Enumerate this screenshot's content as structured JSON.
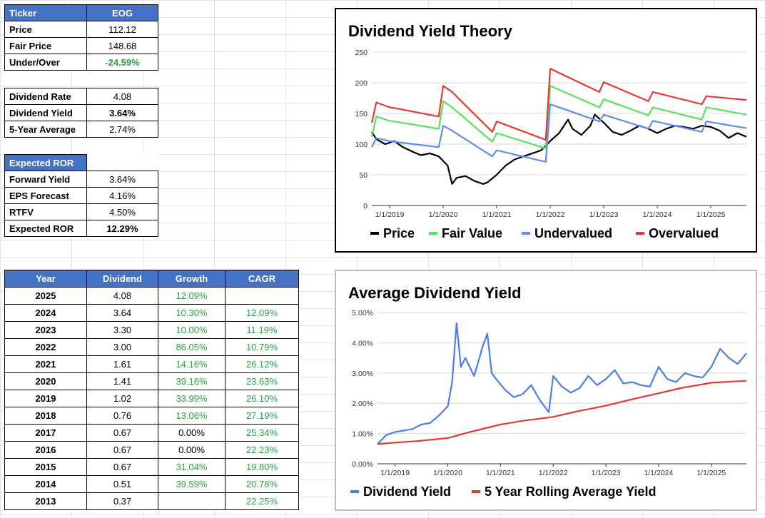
{
  "summary": {
    "header": {
      "label": "Ticker",
      "value": "EOG"
    },
    "rows": [
      {
        "label": "Price",
        "value": "112.12"
      },
      {
        "label": "Fair Price",
        "value": "148.68"
      },
      {
        "label": "Under/Over",
        "value": "-24.59%"
      }
    ]
  },
  "dividend_info": {
    "rows": [
      {
        "label": "Dividend Rate",
        "value": "4.08"
      },
      {
        "label": "Dividend Yield",
        "value": "3.64%"
      },
      {
        "label": "5-Year Average",
        "value": "2.74%"
      }
    ]
  },
  "expected_ror": {
    "header": "Expected ROR",
    "rows": [
      {
        "label": "Forward Yield",
        "value": "3.64%"
      },
      {
        "label": "EPS Forecast",
        "value": "4.16%"
      },
      {
        "label": "RTFV",
        "value": "4.50%"
      },
      {
        "label": "Expected ROR",
        "value": "12.29%"
      }
    ]
  },
  "history": {
    "headers": [
      "Year",
      "Dividend",
      "Growth",
      "CAGR"
    ],
    "rows": [
      {
        "year": "2025",
        "dividend": "4.08",
        "growth": "12.09%",
        "cagr": ""
      },
      {
        "year": "2024",
        "dividend": "3.64",
        "growth": "10.30%",
        "cagr": "12.09%"
      },
      {
        "year": "2023",
        "dividend": "3.30",
        "growth": "10.00%",
        "cagr": "11.19%"
      },
      {
        "year": "2022",
        "dividend": "3.00",
        "growth": "86.05%",
        "cagr": "10.79%"
      },
      {
        "year": "2021",
        "dividend": "1.61",
        "growth": "14.16%",
        "cagr": "26.12%"
      },
      {
        "year": "2020",
        "dividend": "1.41",
        "growth": "39.16%",
        "cagr": "23.63%"
      },
      {
        "year": "2019",
        "dividend": "1.02",
        "growth": "33.99%",
        "cagr": "26.10%"
      },
      {
        "year": "2018",
        "dividend": "0.76",
        "growth": "13.06%",
        "cagr": "27.19%"
      },
      {
        "year": "2017",
        "dividend": "0.67",
        "growth": "0.00%",
        "cagr": "25.34%"
      },
      {
        "year": "2016",
        "dividend": "0.67",
        "growth": "0.00%",
        "cagr": "22.23%"
      },
      {
        "year": "2015",
        "dividend": "0.67",
        "growth": "31.04%",
        "cagr": "19.80%"
      },
      {
        "year": "2014",
        "dividend": "0.51",
        "growth": "39.59%",
        "cagr": "20.78%"
      },
      {
        "year": "2013",
        "dividend": "0.37",
        "growth": "",
        "cagr": "22.25%"
      }
    ]
  },
  "colors": {
    "header_blue": "#4472c4",
    "positive_green": "#2e9f47",
    "price": "#000000",
    "fair_value": "#57e35a",
    "undervalued": "#5b8ff0",
    "overvalued": "#e53935",
    "dividend_yield": "#4a7ee8",
    "rolling_avg": "#e53935"
  },
  "chart_data": [
    {
      "type": "line",
      "title": "Dividend Yield Theory",
      "xlabel": "",
      "ylabel": "",
      "x_tick_labels": [
        "1/1/2019",
        "1/1/2020",
        "1/1/2021",
        "1/1/2022",
        "1/1/2023",
        "1/1/2024",
        "1/1/2025"
      ],
      "y_tick_labels": [
        "0",
        "50",
        "100",
        "150",
        "200",
        "250"
      ],
      "ylim": [
        0,
        250
      ],
      "xlim": [
        "2018-09",
        "2025-09"
      ],
      "grid": true,
      "legend_position": "bottom",
      "series": [
        {
          "name": "Price",
          "color": "#000000",
          "x": [
            "2018-09",
            "2018-10",
            "2018-12",
            "2019-02",
            "2019-04",
            "2019-06",
            "2019-08",
            "2019-10",
            "2019-12",
            "2020-02",
            "2020-03",
            "2020-04",
            "2020-06",
            "2020-08",
            "2020-10",
            "2020-11",
            "2021-01",
            "2021-03",
            "2021-05",
            "2021-07",
            "2021-09",
            "2021-11",
            "2022-01",
            "2022-03",
            "2022-05",
            "2022-06",
            "2022-08",
            "2022-10",
            "2022-11",
            "2023-01",
            "2023-03",
            "2023-05",
            "2023-07",
            "2023-09",
            "2023-11",
            "2024-01",
            "2024-03",
            "2024-05",
            "2024-07",
            "2024-09",
            "2024-11",
            "2025-01",
            "2025-03",
            "2025-05",
            "2025-07",
            "2025-09"
          ],
          "values": [
            120,
            108,
            100,
            105,
            95,
            88,
            82,
            85,
            80,
            65,
            35,
            45,
            48,
            40,
            35,
            38,
            50,
            65,
            75,
            80,
            85,
            90,
            105,
            118,
            140,
            125,
            115,
            130,
            148,
            135,
            120,
            115,
            122,
            130,
            125,
            118,
            125,
            130,
            128,
            125,
            130,
            128,
            122,
            110,
            118,
            112
          ]
        },
        {
          "name": "Fair Value",
          "color": "#57e35a",
          "x": [
            "2018-09",
            "2018-10",
            "2019-01",
            "2019-02",
            "2019-12",
            "2020-01",
            "2020-03",
            "2020-12",
            "2021-01",
            "2021-12",
            "2022-01",
            "2022-12",
            "2023-01",
            "2023-11",
            "2023-12",
            "2024-11",
            "2024-12",
            "2025-09"
          ],
          "values": [
            112,
            145,
            138,
            137,
            125,
            170,
            160,
            104,
            118,
            93,
            195,
            160,
            173,
            147,
            160,
            140,
            160,
            148
          ]
        },
        {
          "name": "Undervalued",
          "color": "#5b8ff0",
          "x": [
            "2018-09",
            "2018-10",
            "2019-01",
            "2019-02",
            "2019-12",
            "2020-01",
            "2020-03",
            "2020-12",
            "2021-01",
            "2021-12",
            "2022-01",
            "2022-12",
            "2023-01",
            "2023-11",
            "2023-12",
            "2024-11",
            "2024-12",
            "2025-09"
          ],
          "values": [
            95,
            110,
            105,
            104,
            95,
            130,
            122,
            80,
            90,
            71,
            165,
            137,
            148,
            125,
            138,
            120,
            137,
            126
          ]
        },
        {
          "name": "Overvalued",
          "color": "#e53935",
          "x": [
            "2018-09",
            "2018-10",
            "2019-01",
            "2019-02",
            "2019-12",
            "2020-01",
            "2020-03",
            "2020-12",
            "2021-01",
            "2021-12",
            "2022-01",
            "2022-12",
            "2023-01",
            "2023-11",
            "2023-12",
            "2024-11",
            "2024-12",
            "2025-09"
          ],
          "values": [
            135,
            168,
            160,
            159,
            145,
            195,
            185,
            120,
            137,
            107,
            223,
            185,
            201,
            170,
            185,
            165,
            178,
            172
          ]
        }
      ]
    },
    {
      "type": "line",
      "title": "Average Dividend Yield",
      "xlabel": "",
      "ylabel": "",
      "x_tick_labels": [
        "1/1/2019",
        "1/1/2020",
        "1/1/2021",
        "1/1/2022",
        "1/1/2023",
        "1/1/2024",
        "1/1/2025"
      ],
      "y_tick_labels": [
        "0.00%",
        "1.00%",
        "2.00%",
        "3.00%",
        "4.00%",
        "5.00%"
      ],
      "ylim": [
        0,
        5
      ],
      "xlim": [
        "2018-09",
        "2025-09"
      ],
      "grid": true,
      "legend_position": "bottom",
      "series": [
        {
          "name": "Dividend Yield",
          "color": "#4a7ee8",
          "x": [
            "2018-09",
            "2018-11",
            "2019-01",
            "2019-03",
            "2019-05",
            "2019-07",
            "2019-09",
            "2019-11",
            "2020-01",
            "2020-02",
            "2020-03",
            "2020-04",
            "2020-05",
            "2020-07",
            "2020-09",
            "2020-10",
            "2020-11",
            "2020-12",
            "2021-02",
            "2021-04",
            "2021-06",
            "2021-08",
            "2021-10",
            "2021-12",
            "2022-01",
            "2022-03",
            "2022-05",
            "2022-07",
            "2022-09",
            "2022-11",
            "2023-01",
            "2023-03",
            "2023-05",
            "2023-07",
            "2023-09",
            "2023-11",
            "2024-01",
            "2024-03",
            "2024-05",
            "2024-07",
            "2024-09",
            "2024-11",
            "2025-01",
            "2025-03",
            "2025-05",
            "2025-07",
            "2025-09"
          ],
          "values": [
            0.65,
            0.95,
            1.05,
            1.1,
            1.15,
            1.3,
            1.35,
            1.6,
            1.9,
            2.7,
            4.65,
            3.2,
            3.5,
            2.9,
            3.9,
            4.3,
            3.0,
            2.8,
            2.45,
            2.2,
            2.3,
            2.6,
            2.1,
            1.7,
            2.9,
            2.55,
            2.35,
            2.5,
            2.9,
            2.6,
            2.8,
            3.1,
            2.65,
            2.7,
            2.6,
            2.55,
            3.2,
            2.8,
            2.7,
            3.0,
            2.9,
            2.85,
            3.2,
            3.8,
            3.5,
            3.3,
            3.65
          ]
        },
        {
          "name": "5 Year Rolling Average Yield",
          "color": "#e53935",
          "x": [
            "2018-09",
            "2019-01",
            "2019-06",
            "2020-01",
            "2020-06",
            "2021-01",
            "2021-06",
            "2022-01",
            "2022-06",
            "2023-01",
            "2023-06",
            "2024-01",
            "2024-06",
            "2025-01",
            "2025-06",
            "2025-09"
          ],
          "values": [
            0.65,
            0.7,
            0.75,
            0.85,
            1.05,
            1.3,
            1.42,
            1.55,
            1.72,
            1.92,
            2.1,
            2.33,
            2.5,
            2.68,
            2.72,
            2.74
          ]
        }
      ]
    }
  ]
}
